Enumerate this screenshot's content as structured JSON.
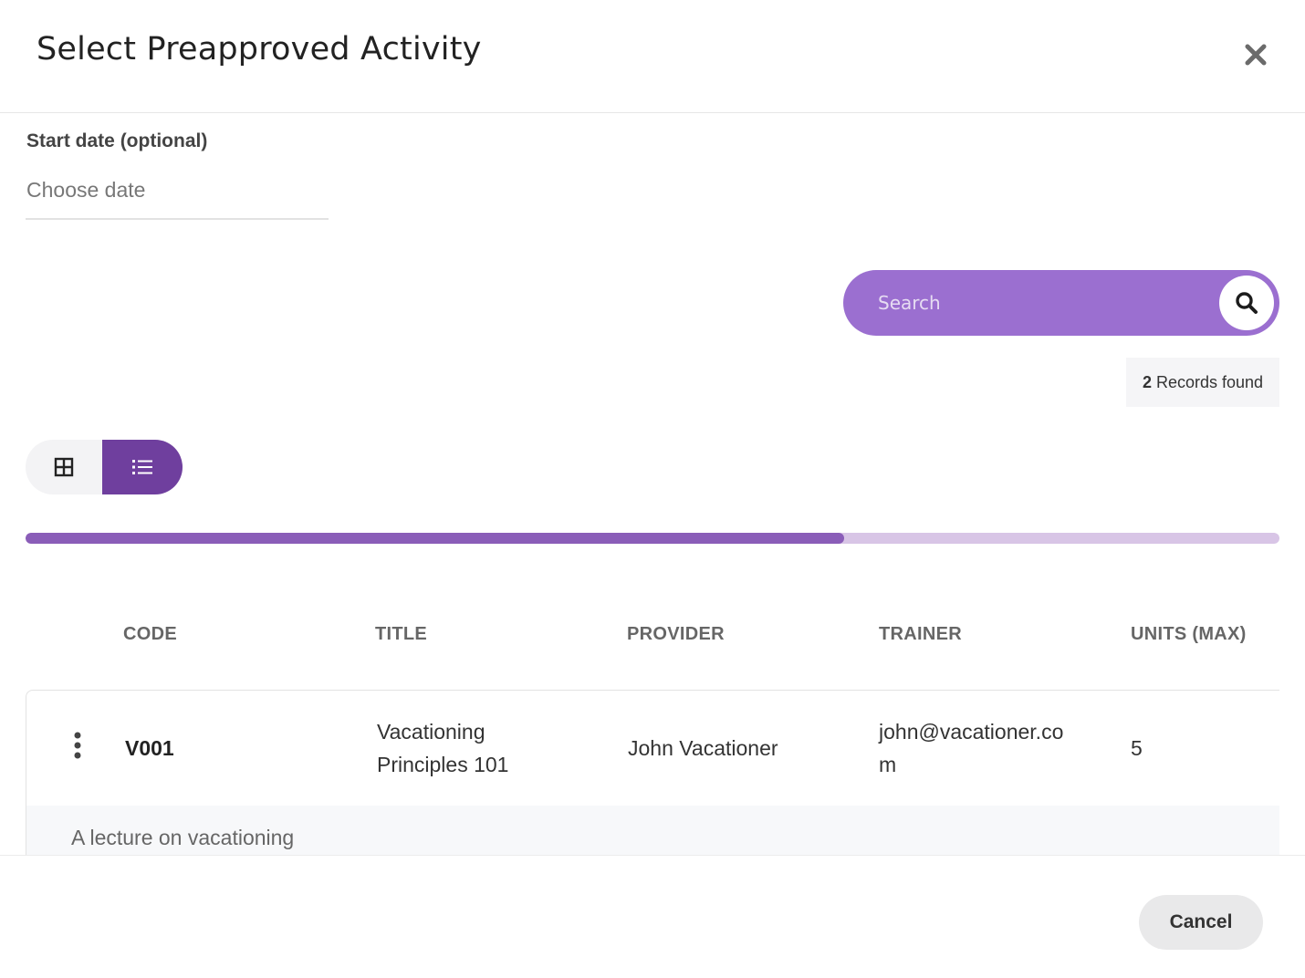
{
  "dialog": {
    "title": "Select Preapproved Activity"
  },
  "start_date": {
    "label": "Start date (optional)",
    "placeholder": "Choose date",
    "value": ""
  },
  "search": {
    "placeholder": "Search",
    "value": ""
  },
  "records": {
    "count": "2",
    "suffix": "Records found"
  },
  "view_toggle": {
    "options": [
      "grid-view",
      "list-view"
    ],
    "selected": "list-view"
  },
  "progress": {
    "fraction": 0.653
  },
  "table": {
    "columns": [
      "CODE",
      "TITLE",
      "PROVIDER",
      "TRAINER",
      "UNITS (MAX)"
    ],
    "rows": [
      {
        "code": "V001",
        "title_line1": "Vacationing",
        "title_line2": "Principles 101",
        "provider": "John Vacationer",
        "trainer_line1": "john@vacationer.co",
        "trainer_line2": "m",
        "units": "5",
        "description": "A lecture on vacationing"
      }
    ]
  },
  "footer": {
    "cancel_label": "Cancel"
  },
  "colors": {
    "accent": "#9b6fd0",
    "accent_dark": "#6f3f9e",
    "progress_fill": "#8a5db8",
    "progress_track": "#d8c5e6"
  }
}
